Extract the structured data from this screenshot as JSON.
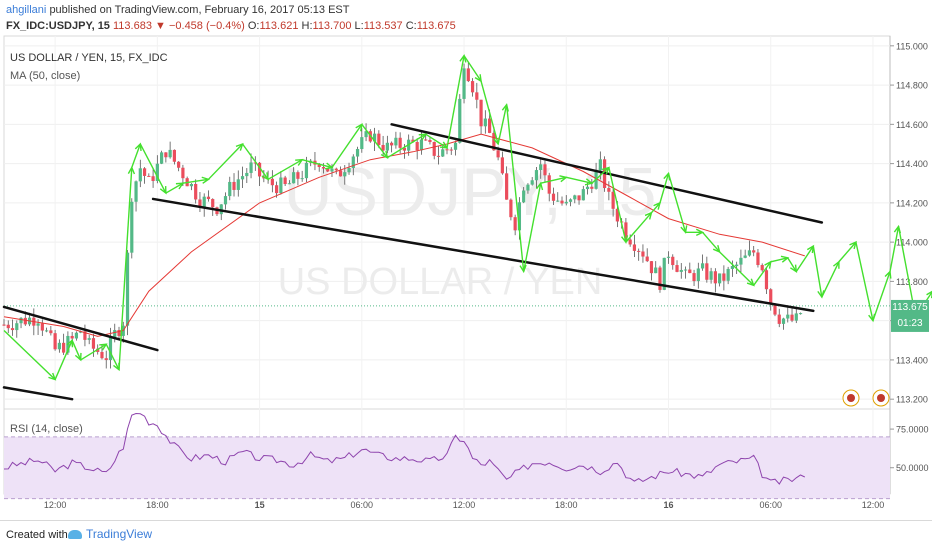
{
  "header": {
    "author": "ahgillani",
    "published_text": "published on TradingView.com, February 16, 2017 05:13 EST",
    "symbol": "FX_IDC:USDJPY, 15",
    "last": "113.683",
    "change": "−0.458 (−0.4%)",
    "o_label": "O:",
    "o_value": "113.621",
    "h_label": "H:",
    "h_value": "113.700",
    "l_label": "L:",
    "l_value": "113.537",
    "c_label": "C:",
    "c_value": "113.675"
  },
  "legend": {
    "title": "US DOLLAR / YEN, 15, FX_IDC",
    "ma": "MA (50, close)",
    "rsi": "RSI (14, close)"
  },
  "watermark": {
    "line1": "USDJPY, 15",
    "line2": "US DOLLAR / YEN"
  },
  "price_badge": {
    "value": "113.675",
    "countdown": "01:23"
  },
  "footer": {
    "created": "Created with",
    "brand": "TradingView"
  },
  "colors": {
    "up": "#53b987",
    "down": "#eb4d5c",
    "ma": "#e53935",
    "rsi": "#8e44ad",
    "rsi_band": "#eee2f7",
    "arrows": "#44e02e",
    "channel": "#111111",
    "accent": "#3b7dd8"
  },
  "chart_data": [
    {
      "type": "candlestick",
      "title": "US DOLLAR / YEN, 15, FX_IDC",
      "ylim": [
        113.15,
        115.05
      ],
      "y_ticks": [
        "115.000",
        "114.800",
        "114.600",
        "114.400",
        "114.200",
        "114.000",
        "113.800",
        "113.600",
        "113.400",
        "113.200"
      ],
      "x_ticks": [
        "12:00",
        "18:00",
        "15",
        "06:00",
        "12:00",
        "18:00",
        "16",
        "06:00",
        "12:00"
      ],
      "x_tick_units": [
        8,
        32,
        56,
        80,
        104,
        128,
        152,
        176,
        200
      ],
      "x_range_units": [
        -4,
        204
      ],
      "current_price": 113.675,
      "price_path": [
        [
          -4,
          113.58
        ],
        [
          4,
          113.62
        ],
        [
          8,
          113.45
        ],
        [
          12,
          113.5
        ],
        [
          14,
          113.55
        ],
        [
          16,
          113.47
        ],
        [
          20,
          113.42
        ],
        [
          22,
          113.53
        ],
        [
          24,
          113.6
        ],
        [
          26,
          114.25
        ],
        [
          28,
          114.38
        ],
        [
          30,
          114.3
        ],
        [
          34,
          114.47
        ],
        [
          38,
          114.35
        ],
        [
          42,
          114.22
        ],
        [
          46,
          114.18
        ],
        [
          50,
          114.3
        ],
        [
          54,
          114.38
        ],
        [
          58,
          114.3
        ],
        [
          62,
          114.28
        ],
        [
          66,
          114.35
        ],
        [
          70,
          114.42
        ],
        [
          74,
          114.33
        ],
        [
          78,
          114.45
        ],
        [
          82,
          114.55
        ],
        [
          86,
          114.48
        ],
        [
          90,
          114.5
        ],
        [
          94,
          114.5
        ],
        [
          98,
          114.45
        ],
        [
          102,
          114.5
        ],
        [
          104,
          114.93
        ],
        [
          106,
          114.8
        ],
        [
          108,
          114.62
        ],
        [
          110,
          114.55
        ],
        [
          112,
          114.42
        ],
        [
          114,
          114.2
        ],
        [
          116,
          114.1
        ],
        [
          118,
          114.3
        ],
        [
          122,
          114.4
        ],
        [
          124,
          114.25
        ],
        [
          128,
          114.18
        ],
        [
          132,
          114.25
        ],
        [
          136,
          114.38
        ],
        [
          138,
          114.22
        ],
        [
          142,
          114.05
        ],
        [
          146,
          113.95
        ],
        [
          150,
          113.8
        ],
        [
          152,
          113.95
        ],
        [
          156,
          113.82
        ],
        [
          160,
          113.85
        ],
        [
          164,
          113.8
        ],
        [
          168,
          113.88
        ],
        [
          172,
          113.95
        ],
        [
          174,
          113.88
        ],
        [
          176,
          113.7
        ],
        [
          178,
          113.62
        ],
        [
          180,
          113.6
        ],
        [
          182,
          113.6
        ],
        [
          184,
          113.68
        ]
      ],
      "moving_average": {
        "name": "MA (50, close)",
        "points": [
          [
            -4,
            113.62
          ],
          [
            10,
            113.57
          ],
          [
            18,
            113.52
          ],
          [
            24,
            113.55
          ],
          [
            30,
            113.75
          ],
          [
            40,
            113.95
          ],
          [
            56,
            114.2
          ],
          [
            70,
            114.33
          ],
          [
            82,
            114.42
          ],
          [
            92,
            114.46
          ],
          [
            100,
            114.5
          ],
          [
            108,
            114.55
          ],
          [
            120,
            114.48
          ],
          [
            132,
            114.36
          ],
          [
            142,
            114.24
          ],
          [
            152,
            114.12
          ],
          [
            164,
            114.04
          ],
          [
            174,
            114.0
          ],
          [
            184,
            113.93
          ]
        ]
      },
      "channel_lines": [
        {
          "from": [
            -4,
            113.67
          ],
          "to": [
            32,
            113.45
          ]
        },
        {
          "from": [
            -4,
            113.26
          ],
          "to": [
            12,
            113.2
          ]
        },
        {
          "from": [
            31,
            114.22
          ],
          "to": [
            186,
            113.65
          ]
        },
        {
          "from": [
            87,
            114.6
          ],
          "to": [
            188,
            114.1
          ]
        }
      ],
      "arrow_path": [
        [
          -4,
          113.55
        ],
        [
          8,
          113.3
        ],
        [
          12,
          113.5
        ],
        [
          14,
          113.4
        ],
        [
          20,
          113.48
        ],
        [
          23,
          113.35
        ],
        [
          26,
          114.38
        ],
        [
          28,
          114.5
        ],
        [
          34,
          114.25
        ],
        [
          38,
          114.3
        ],
        [
          44,
          114.32
        ],
        [
          52,
          114.5
        ],
        [
          58,
          114.32
        ],
        [
          66,
          114.42
        ],
        [
          73,
          114.38
        ],
        [
          80,
          114.6
        ],
        [
          86,
          114.43
        ],
        [
          95,
          114.55
        ],
        [
          100,
          114.48
        ],
        [
          104,
          114.95
        ],
        [
          108,
          114.82
        ],
        [
          112,
          114.5
        ],
        [
          114,
          114.7
        ],
        [
          118,
          113.85
        ],
        [
          122,
          114.3
        ],
        [
          128,
          114.33
        ],
        [
          134,
          114.3
        ],
        [
          138,
          114.38
        ],
        [
          142,
          114.0
        ],
        [
          148,
          114.15
        ],
        [
          150,
          114.2
        ],
        [
          152,
          114.35
        ],
        [
          156,
          114.05
        ],
        [
          160,
          114.05
        ],
        [
          164,
          113.95
        ],
        [
          172,
          113.78
        ],
        [
          176,
          113.9
        ],
        [
          180,
          113.92
        ],
        [
          182,
          113.85
        ],
        [
          186,
          113.98
        ],
        [
          188,
          113.72
        ],
        [
          192,
          113.9
        ],
        [
          196,
          114.0
        ],
        [
          200,
          113.6
        ],
        [
          204,
          113.85
        ],
        [
          206,
          114.08
        ],
        [
          210,
          113.62
        ],
        [
          214,
          113.75
        ],
        [
          218,
          114.1
        ],
        [
          222,
          113.82
        ],
        [
          224,
          113.65
        ],
        [
          228,
          113.72
        ],
        [
          234,
          114.1
        ]
      ]
    },
    {
      "type": "line",
      "title": "RSI (14, close)",
      "ylim": [
        33,
        88
      ],
      "y_ticks": [
        "75.0000",
        "50.0000"
      ],
      "band": [
        30,
        70
      ],
      "series": [
        {
          "name": "RSI (14, close)",
          "points": [
            [
              -4,
              50
            ],
            [
              4,
              55
            ],
            [
              8,
              48
            ],
            [
              12,
              53
            ],
            [
              16,
              50
            ],
            [
              20,
              46
            ],
            [
              22,
              55
            ],
            [
              24,
              64
            ],
            [
              26,
              84
            ],
            [
              28,
              86
            ],
            [
              30,
              80
            ],
            [
              32,
              78
            ],
            [
              36,
              64
            ],
            [
              40,
              56
            ],
            [
              44,
              58
            ],
            [
              48,
              54
            ],
            [
              52,
              60
            ],
            [
              56,
              56
            ],
            [
              60,
              55
            ],
            [
              64,
              52
            ],
            [
              68,
              58
            ],
            [
              72,
              54
            ],
            [
              76,
              56
            ],
            [
              80,
              62
            ],
            [
              84,
              58
            ],
            [
              88,
              56
            ],
            [
              92,
              56
            ],
            [
              96,
              54
            ],
            [
              100,
              58
            ],
            [
              102,
              70
            ],
            [
              104,
              68
            ],
            [
              106,
              56
            ],
            [
              108,
              52
            ],
            [
              110,
              54
            ],
            [
              112,
              48
            ],
            [
              114,
              42
            ],
            [
              116,
              46
            ],
            [
              120,
              53
            ],
            [
              124,
              54
            ],
            [
              128,
              50
            ],
            [
              132,
              52
            ],
            [
              136,
              48
            ],
            [
              140,
              54
            ],
            [
              142,
              46
            ],
            [
              144,
              40
            ],
            [
              148,
              44
            ],
            [
              152,
              48
            ],
            [
              156,
              46
            ],
            [
              160,
              44
            ],
            [
              164,
              52
            ],
            [
              168,
              54
            ],
            [
              172,
              56
            ],
            [
              174,
              46
            ],
            [
              176,
              40
            ],
            [
              180,
              42
            ],
            [
              184,
              44
            ]
          ]
        }
      ]
    }
  ]
}
